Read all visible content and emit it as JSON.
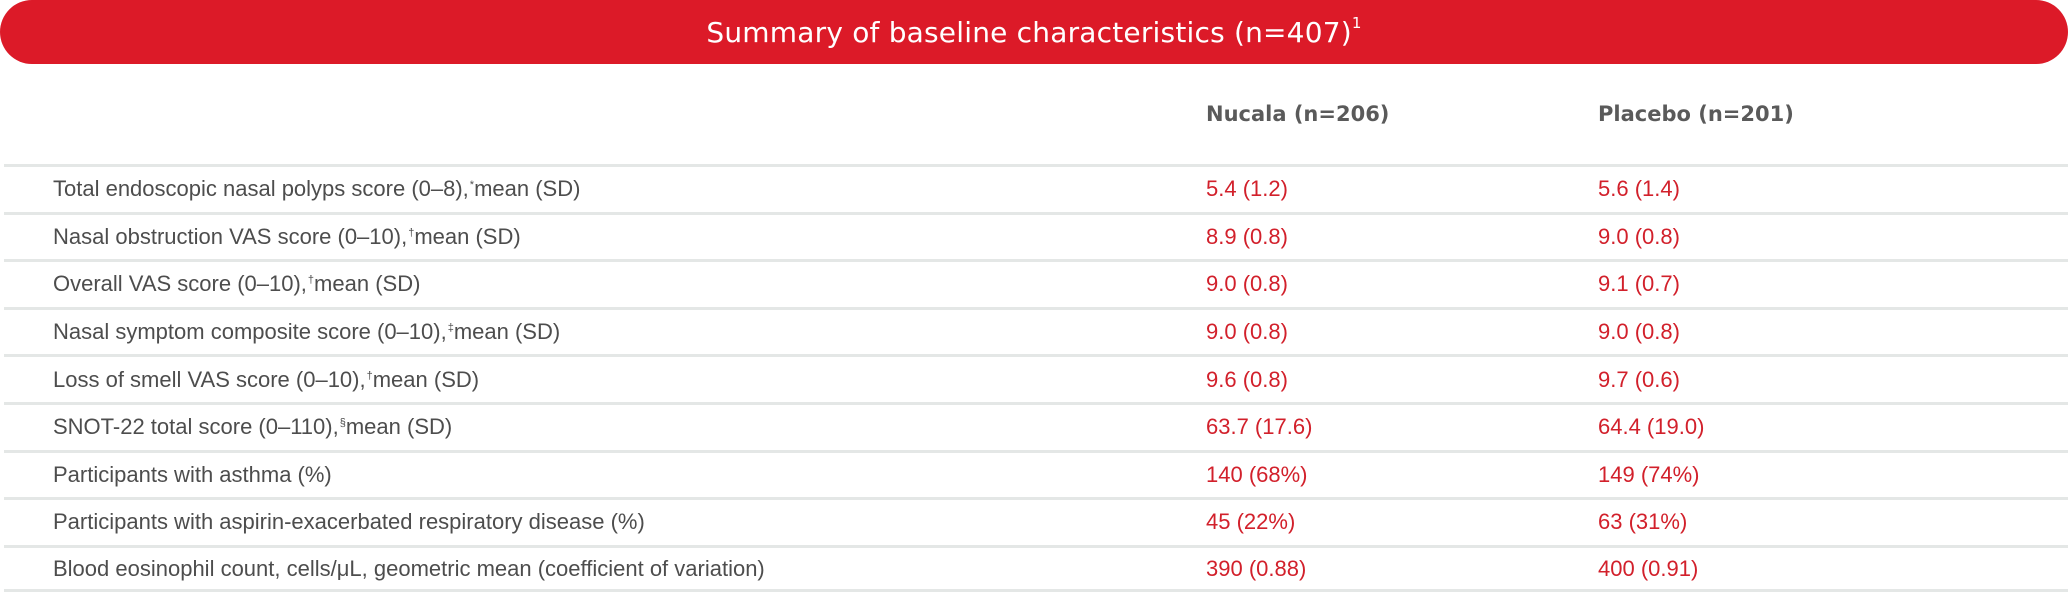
{
  "header": {
    "title": "Summary of baseline characteristics (n=407)",
    "title_ref": "1"
  },
  "columns": {
    "nucala": "Nucala (n=206)",
    "placebo": "Placebo (n=201)"
  },
  "rows": [
    {
      "label": "Total endoscopic nasal polyps score (0–8),",
      "mark": "*",
      "suffix": " mean (SD)",
      "nucala": "5.4 (1.2)",
      "placebo": "5.6 (1.4)"
    },
    {
      "label": "Nasal obstruction VAS score (0–10),",
      "mark": "†",
      "suffix": " mean (SD)",
      "nucala": "8.9 (0.8)",
      "placebo": "9.0 (0.8)"
    },
    {
      "label": "Overall VAS score (0–10),",
      "mark": "†",
      "suffix": " mean (SD)",
      "nucala": "9.0 (0.8)",
      "placebo": "9.1 (0.7)"
    },
    {
      "label": "Nasal symptom composite score (0–10),",
      "mark": "‡",
      "suffix": " mean (SD)",
      "nucala": "9.0 (0.8)",
      "placebo": "9.0 (0.8)"
    },
    {
      "label": "Loss of smell VAS score (0–10),",
      "mark": "†",
      "suffix": " mean (SD)",
      "nucala": "9.6 (0.8)",
      "placebo": "9.7 (0.6)"
    },
    {
      "label": "SNOT-22 total score (0–110),",
      "mark": "§",
      "suffix": " mean (SD)",
      "nucala": "63.7 (17.6)",
      "placebo": "64.4 (19.0)"
    },
    {
      "label": "Participants with asthma (%)",
      "mark": "",
      "suffix": "",
      "nucala": "140 (68%)",
      "placebo": "149 (74%)"
    },
    {
      "label": "Participants with aspirin-exacerbated respiratory disease (%)",
      "mark": "",
      "suffix": "",
      "nucala": "45 (22%)",
      "placebo": "63 (31%)"
    },
    {
      "label": "Blood eosinophil count, cells/μL, geometric mean (coefficient of variation)",
      "mark": "",
      "suffix": "",
      "nucala": "390 (0.88)",
      "placebo": "400 (0.91)"
    }
  ],
  "colors": {
    "brand_red": "#dc1a28",
    "value_red": "#d2202b",
    "divider": "#e4e7e6"
  }
}
